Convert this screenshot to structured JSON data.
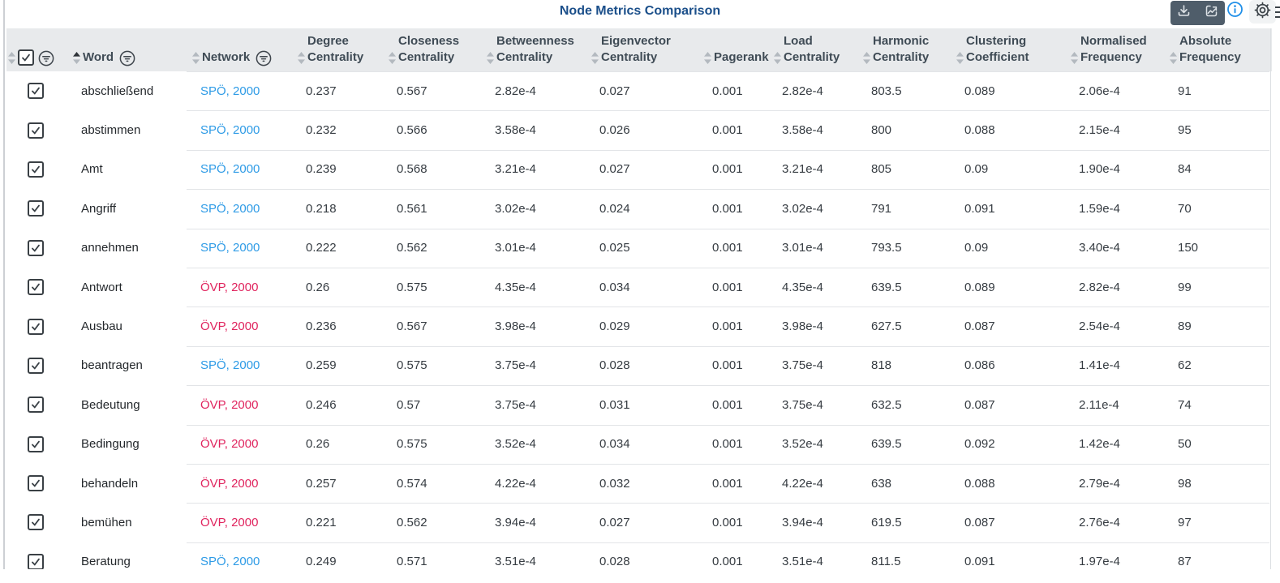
{
  "title": "Node Metrics Comparison",
  "toolbar": {
    "buttons": [
      {
        "name": "download",
        "icon": "download-icon"
      },
      {
        "name": "open-chart",
        "icon": "line-chart-icon"
      }
    ],
    "info_icon": "info-icon",
    "settings_icon": "gear-icon",
    "menu_icon": "hamburger-menu-icon-partial"
  },
  "colors": {
    "title": "#1b4f8a",
    "header_bg": "#e8eaec",
    "header_text": "#3f4b55",
    "toolbar_bg": "#4f5d6a",
    "info_blue": "#1f8fe8",
    "row_divider": "#e2e4e7",
    "parties": {
      "SPÖ": "#2E9BE6",
      "ÖVP": "#E0245E"
    }
  },
  "table": {
    "sorted_column": "word",
    "sort_direction": "ascending",
    "columns": [
      {
        "key": "select",
        "type": "select",
        "label": "",
        "filter": true
      },
      {
        "key": "word",
        "type": "word",
        "label": "Word",
        "filter": true,
        "sorted": "asc"
      },
      {
        "key": "network",
        "type": "network",
        "label": "Network",
        "filter": true
      },
      {
        "key": "degree",
        "type": "num",
        "label": "Degree Centrality"
      },
      {
        "key": "closeness",
        "type": "num",
        "label": "Closeness Centrality"
      },
      {
        "key": "betweenness",
        "type": "num",
        "label": "Betweenness Centrality"
      },
      {
        "key": "eigenvector",
        "type": "num",
        "label": "Eigenvector Centrality"
      },
      {
        "key": "pagerank",
        "type": "num",
        "label": "Pagerank"
      },
      {
        "key": "load",
        "type": "num",
        "label": "Load Centrality"
      },
      {
        "key": "harmonic",
        "type": "num",
        "label": "Harmonic Centrality"
      },
      {
        "key": "clustering",
        "type": "num",
        "label": "Clustering Coefficient"
      },
      {
        "key": "normalised",
        "type": "num",
        "label": "Normalised Frequency"
      },
      {
        "key": "absolute",
        "type": "num",
        "label": "Absolute Frequency"
      }
    ],
    "rows": [
      {
        "selected": true,
        "word": "abschließend",
        "network": "SPÖ, 2000",
        "party": "SPÖ",
        "metrics": {
          "degree": "0.237",
          "closeness": "0.567",
          "betweenness": "2.82e-4",
          "eigenvector": "0.027",
          "pagerank": "0.001",
          "load": "2.82e-4",
          "harmonic": "803.5",
          "clustering": "0.089",
          "normalised": "2.06e-4",
          "absolute": "91"
        }
      },
      {
        "selected": true,
        "word": "abstimmen",
        "network": "SPÖ, 2000",
        "party": "SPÖ",
        "metrics": {
          "degree": "0.232",
          "closeness": "0.566",
          "betweenness": "3.58e-4",
          "eigenvector": "0.026",
          "pagerank": "0.001",
          "load": "3.58e-4",
          "harmonic": "800",
          "clustering": "0.088",
          "normalised": "2.15e-4",
          "absolute": "95"
        }
      },
      {
        "selected": true,
        "word": "Amt",
        "network": "SPÖ, 2000",
        "party": "SPÖ",
        "metrics": {
          "degree": "0.239",
          "closeness": "0.568",
          "betweenness": "3.21e-4",
          "eigenvector": "0.027",
          "pagerank": "0.001",
          "load": "3.21e-4",
          "harmonic": "805",
          "clustering": "0.09",
          "normalised": "1.90e-4",
          "absolute": "84"
        }
      },
      {
        "selected": true,
        "word": "Angriff",
        "network": "SPÖ, 2000",
        "party": "SPÖ",
        "metrics": {
          "degree": "0.218",
          "closeness": "0.561",
          "betweenness": "3.02e-4",
          "eigenvector": "0.024",
          "pagerank": "0.001",
          "load": "3.02e-4",
          "harmonic": "791",
          "clustering": "0.091",
          "normalised": "1.59e-4",
          "absolute": "70"
        }
      },
      {
        "selected": true,
        "word": "annehmen",
        "network": "SPÖ, 2000",
        "party": "SPÖ",
        "metrics": {
          "degree": "0.222",
          "closeness": "0.562",
          "betweenness": "3.01e-4",
          "eigenvector": "0.025",
          "pagerank": "0.001",
          "load": "3.01e-4",
          "harmonic": "793.5",
          "clustering": "0.09",
          "normalised": "3.40e-4",
          "absolute": "150"
        }
      },
      {
        "selected": true,
        "word": "Antwort",
        "network": "ÖVP, 2000",
        "party": "ÖVP",
        "metrics": {
          "degree": "0.26",
          "closeness": "0.575",
          "betweenness": "4.35e-4",
          "eigenvector": "0.034",
          "pagerank": "0.001",
          "load": "4.35e-4",
          "harmonic": "639.5",
          "clustering": "0.089",
          "normalised": "2.82e-4",
          "absolute": "99"
        }
      },
      {
        "selected": true,
        "word": "Ausbau",
        "network": "ÖVP, 2000",
        "party": "ÖVP",
        "metrics": {
          "degree": "0.236",
          "closeness": "0.567",
          "betweenness": "3.98e-4",
          "eigenvector": "0.029",
          "pagerank": "0.001",
          "load": "3.98e-4",
          "harmonic": "627.5",
          "clustering": "0.087",
          "normalised": "2.54e-4",
          "absolute": "89"
        }
      },
      {
        "selected": true,
        "word": "beantragen",
        "network": "SPÖ, 2000",
        "party": "SPÖ",
        "metrics": {
          "degree": "0.259",
          "closeness": "0.575",
          "betweenness": "3.75e-4",
          "eigenvector": "0.028",
          "pagerank": "0.001",
          "load": "3.75e-4",
          "harmonic": "818",
          "clustering": "0.086",
          "normalised": "1.41e-4",
          "absolute": "62"
        }
      },
      {
        "selected": true,
        "word": "Bedeutung",
        "network": "ÖVP, 2000",
        "party": "ÖVP",
        "metrics": {
          "degree": "0.246",
          "closeness": "0.57",
          "betweenness": "3.75e-4",
          "eigenvector": "0.031",
          "pagerank": "0.001",
          "load": "3.75e-4",
          "harmonic": "632.5",
          "clustering": "0.087",
          "normalised": "2.11e-4",
          "absolute": "74"
        }
      },
      {
        "selected": true,
        "word": "Bedingung",
        "network": "ÖVP, 2000",
        "party": "ÖVP",
        "metrics": {
          "degree": "0.26",
          "closeness": "0.575",
          "betweenness": "3.52e-4",
          "eigenvector": "0.034",
          "pagerank": "0.001",
          "load": "3.52e-4",
          "harmonic": "639.5",
          "clustering": "0.092",
          "normalised": "1.42e-4",
          "absolute": "50"
        }
      },
      {
        "selected": true,
        "word": "behandeln",
        "network": "ÖVP, 2000",
        "party": "ÖVP",
        "metrics": {
          "degree": "0.257",
          "closeness": "0.574",
          "betweenness": "4.22e-4",
          "eigenvector": "0.032",
          "pagerank": "0.001",
          "load": "4.22e-4",
          "harmonic": "638",
          "clustering": "0.088",
          "normalised": "2.79e-4",
          "absolute": "98"
        }
      },
      {
        "selected": true,
        "word": "bemühen",
        "network": "ÖVP, 2000",
        "party": "ÖVP",
        "metrics": {
          "degree": "0.221",
          "closeness": "0.562",
          "betweenness": "3.94e-4",
          "eigenvector": "0.027",
          "pagerank": "0.001",
          "load": "3.94e-4",
          "harmonic": "619.5",
          "clustering": "0.087",
          "normalised": "2.76e-4",
          "absolute": "97"
        }
      },
      {
        "selected": true,
        "word": "Beratung",
        "network": "SPÖ, 2000",
        "party": "SPÖ",
        "metrics": {
          "degree": "0.249",
          "closeness": "0.571",
          "betweenness": "3.51e-4",
          "eigenvector": "0.028",
          "pagerank": "0.001",
          "load": "3.51e-4",
          "harmonic": "811.5",
          "clustering": "0.091",
          "normalised": "1.97e-4",
          "absolute": "87"
        }
      }
    ]
  }
}
